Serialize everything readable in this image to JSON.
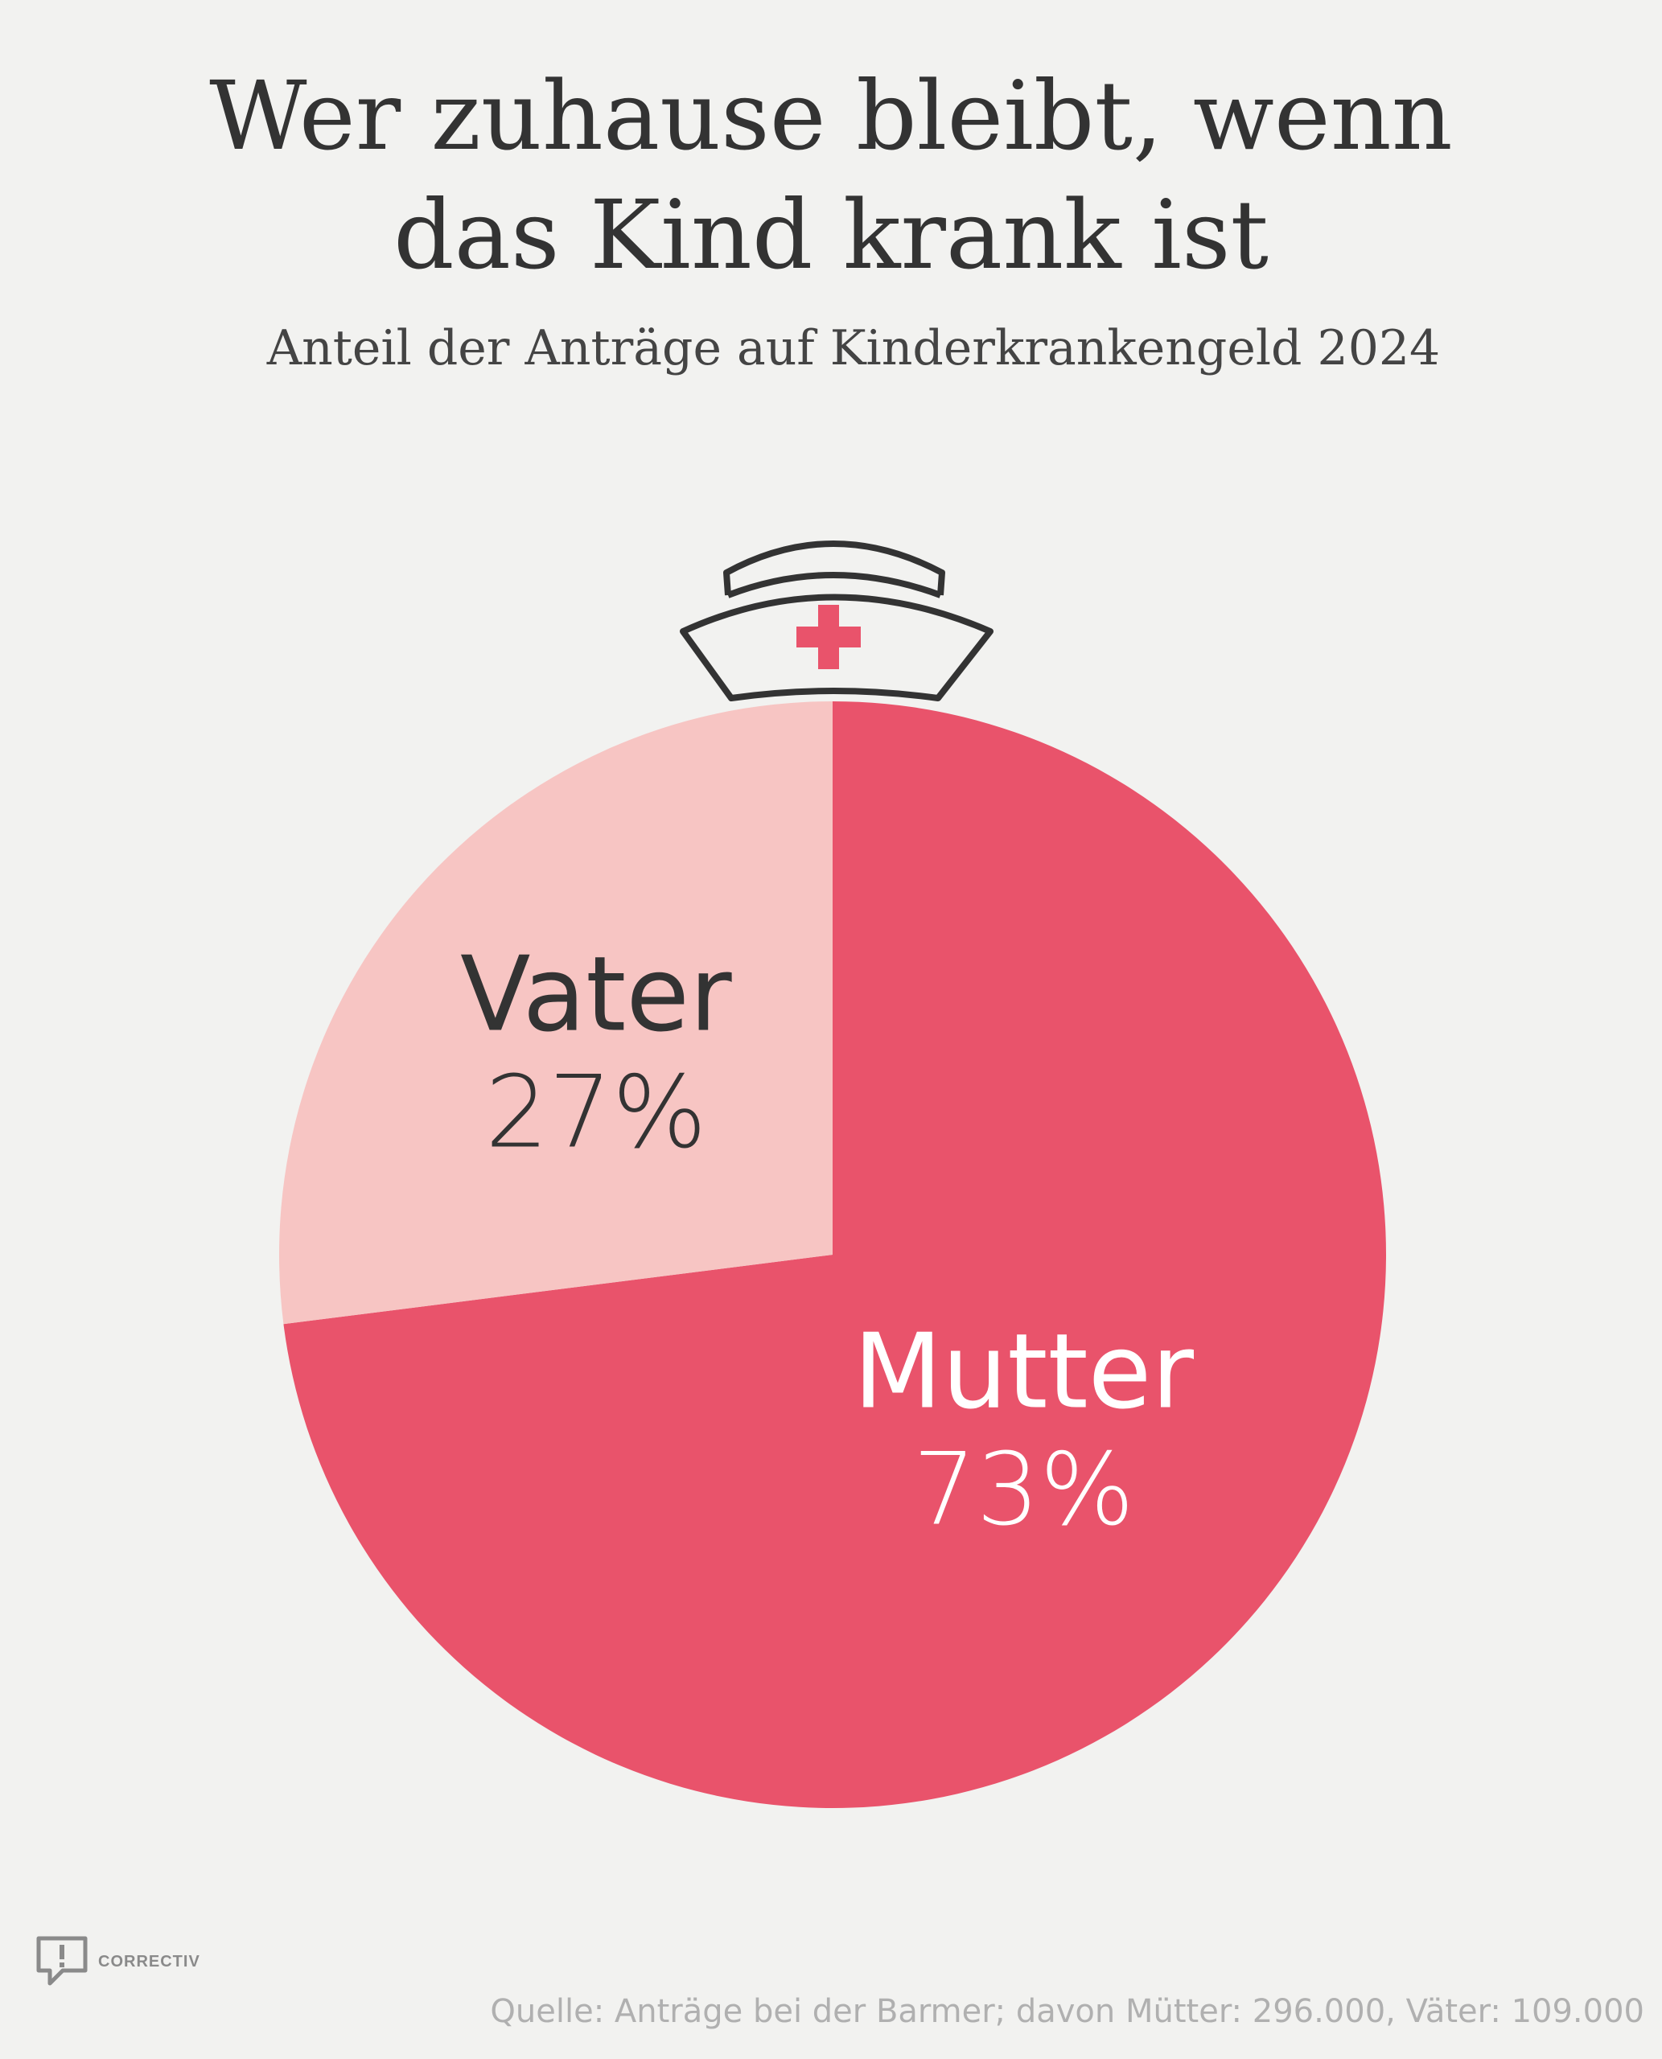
{
  "header": {
    "title_line1": "Wer zuhause bleibt, wenn",
    "title_line2": "das Kind krank ist",
    "subtitle": "Anteil der Anträge auf Kinderkrankengeld 2024"
  },
  "chart_data": {
    "type": "pie",
    "slices": [
      {
        "label": "Mutter",
        "value": 73,
        "value_label": "73%",
        "color": "#e9536b",
        "text_color": "#ffffff"
      },
      {
        "label": "Vater",
        "value": 27,
        "value_label": "27%",
        "color": "#f7c5c3",
        "text_color": "#333333"
      }
    ]
  },
  "decoration": {
    "icon": "nurse-cap-icon",
    "cross_color": "#e9536b",
    "outline_color": "#333333"
  },
  "footer": {
    "logo_text": "CORRECTIV",
    "source": "Quelle: Anträge bei der Barmer; davon Mütter: 296.000, Väter: 109.000"
  }
}
